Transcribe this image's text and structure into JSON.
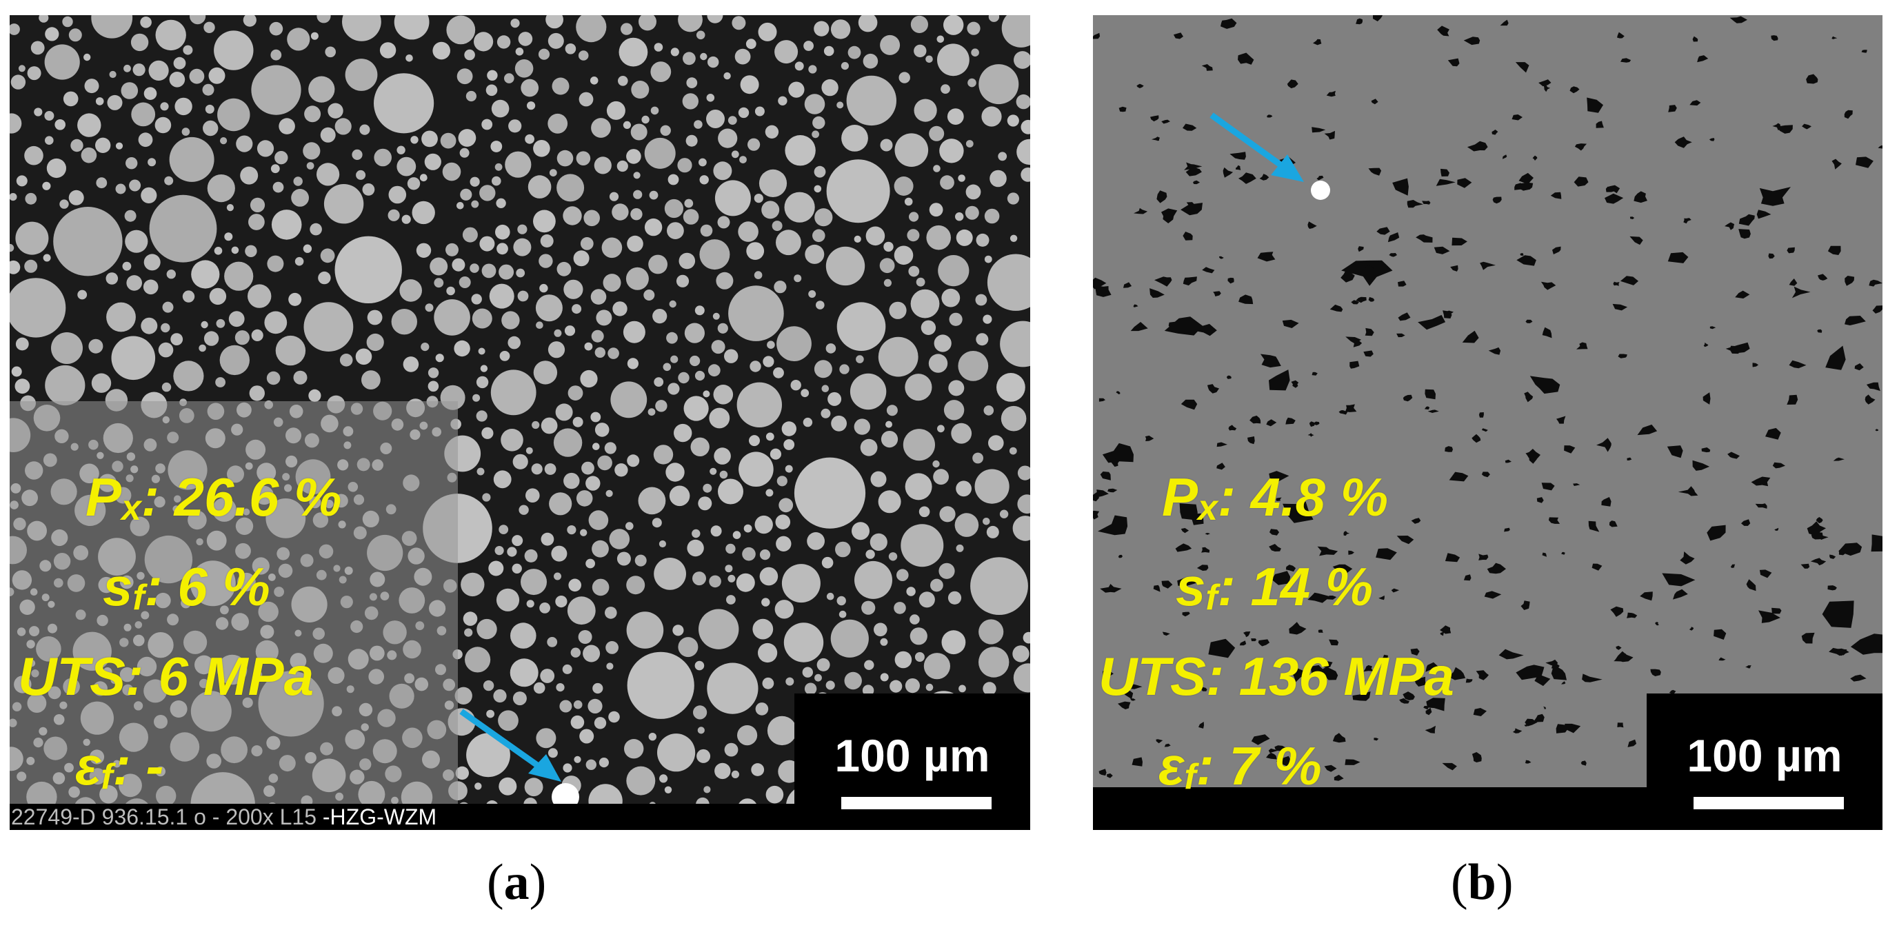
{
  "panels": [
    {
      "id": "a",
      "caption_letter": "a",
      "px": "26.6 %",
      "sf": "6 %",
      "uts": "6 MPa",
      "ef": "-",
      "scale_bar_label": "100 µm",
      "databar_left": "22749-D 936.15.1 o - 200x L15",
      "databar_right": "-HZG-WZM"
    },
    {
      "id": "b",
      "caption_letter": "b",
      "px": "4.8 %",
      "sf": "14 %",
      "uts": "136 MPa",
      "ef": "7 %",
      "scale_bar_label": "100 µm"
    }
  ],
  "labels": {
    "px_symbol": "P",
    "px_sub": "x",
    "sf_symbol": "s",
    "sf_sub": "f",
    "uts_symbol": "UTS",
    "ef_symbol": "ε",
    "ef_sub": "f",
    "colon": ":"
  },
  "colors": {
    "annotation_text": "#f4f000",
    "arrow": "#1aa6e0",
    "particles": "#b4b4b4",
    "matrix_b": "#7e7e7e"
  }
}
